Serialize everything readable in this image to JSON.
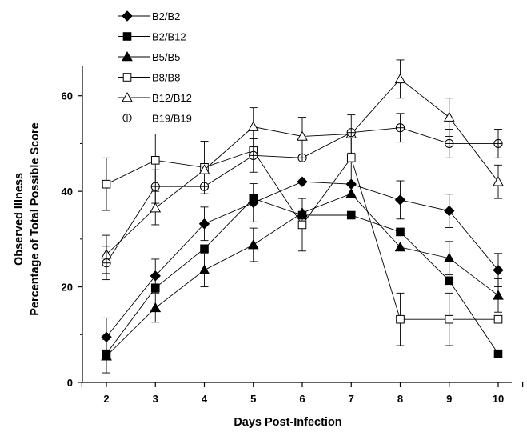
{
  "chart_data": {
    "type": "line",
    "xlabel": "Days Post-Infection",
    "ylabel_lines": [
      "Observed Illness",
      "Percentage of Total Possible Score"
    ],
    "x": [
      2,
      3,
      4,
      5,
      6,
      7,
      8,
      9,
      10
    ],
    "xlim": [
      1.5,
      10.5
    ],
    "ylim": [
      0,
      70
    ],
    "yticks": [
      0,
      20,
      40,
      60
    ],
    "grid": false,
    "legend_position": "top-left",
    "series": [
      {
        "name": "B2/B2",
        "marker": "diamond",
        "fill": "#000000",
        "values": [
          9.5,
          22.3,
          33.2,
          37.6,
          42,
          41.5,
          38.2,
          35.9,
          23.5
        ],
        "errors": [
          4,
          3.5,
          3.5,
          4,
          0,
          0,
          4,
          3.5,
          3.5
        ]
      },
      {
        "name": "B2/B12",
        "marker": "square",
        "fill": "#000000",
        "values": [
          6,
          19.8,
          28,
          38.5,
          35,
          35,
          31.5,
          21.3,
          6
        ],
        "errors": [
          0,
          0,
          0,
          0,
          0,
          0,
          0,
          0,
          0
        ]
      },
      {
        "name": "B5/B5",
        "marker": "triangle",
        "fill": "#000000",
        "values": [
          5.5,
          15.6,
          23.5,
          28.8,
          35.5,
          39.5,
          28.3,
          26,
          18.2
        ],
        "errors": [
          3.5,
          3,
          3.5,
          3.5,
          0,
          0,
          0,
          3.5,
          3.5
        ]
      },
      {
        "name": "B8/B8",
        "marker": "square",
        "fill": "#ffffff",
        "values": [
          41.5,
          46.5,
          45,
          48.5,
          33,
          47,
          13.2,
          13.2,
          13.2
        ],
        "errors": [
          5.5,
          5.5,
          5.5,
          0,
          5.5,
          5.5,
          5.5,
          5.5,
          0
        ]
      },
      {
        "name": "B12/B12",
        "marker": "triangle",
        "fill": "#ffffff",
        "values": [
          26.8,
          36.5,
          44.5,
          53.5,
          51.5,
          52,
          63.5,
          55.5,
          42
        ],
        "errors": [
          4,
          3.5,
          0,
          4,
          4,
          4,
          4,
          4,
          3.5
        ]
      },
      {
        "name": "B19/B19",
        "marker": "circle-cross",
        "fill": "#ffffff",
        "values": [
          25,
          41,
          41,
          47.5,
          47,
          52.3,
          53.3,
          50,
          50
        ],
        "errors": [
          3.5,
          3.5,
          0,
          3.5,
          0,
          0,
          3,
          3,
          3
        ]
      }
    ]
  }
}
